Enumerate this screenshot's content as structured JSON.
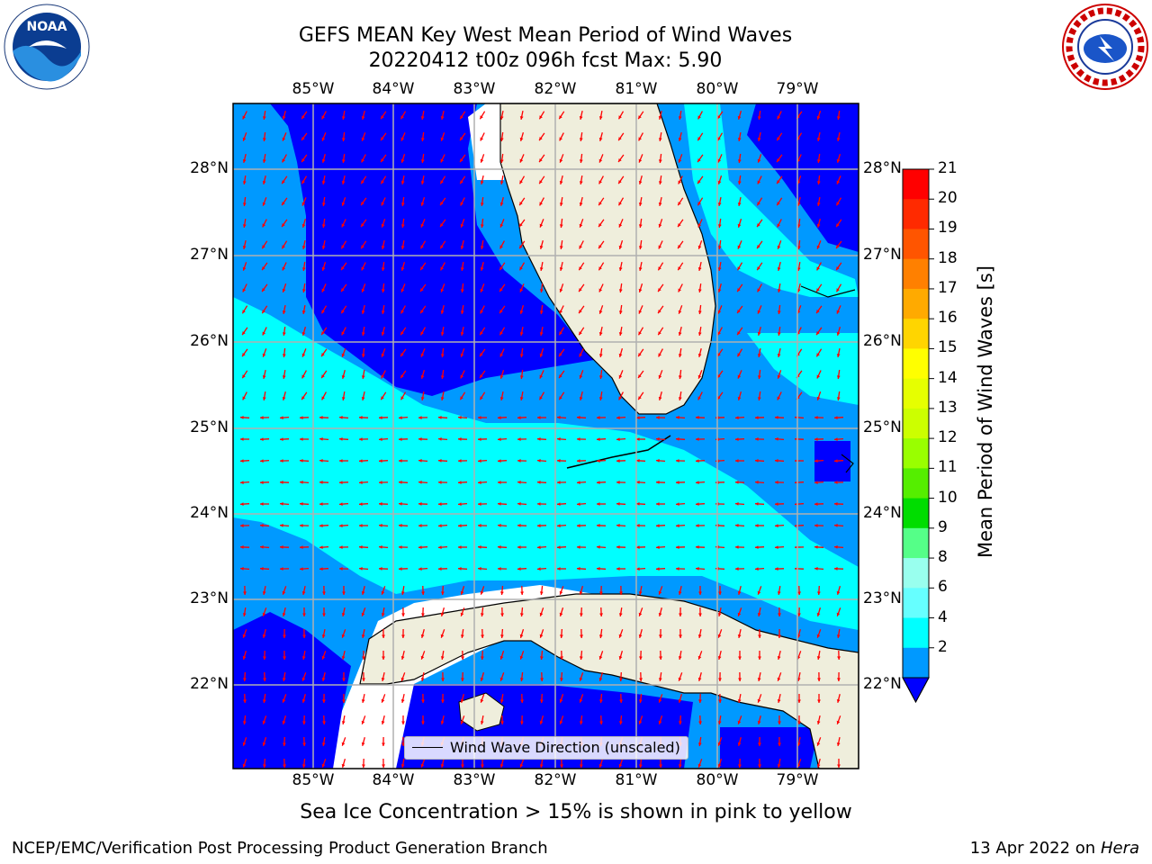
{
  "title": {
    "line1": "GEFS MEAN Key West Mean Period of Wind Waves",
    "line2": "20220412 t00z 096h fcst   Max: 5.90"
  },
  "logos": {
    "left": {
      "icon": "noaa-logo",
      "text": "NOAA"
    },
    "right": {
      "icon": "nws-logo",
      "text": "NATIONAL WEATHER SERVICE"
    }
  },
  "map": {
    "lon_labels": [
      "85°W",
      "84°W",
      "83°W",
      "82°W",
      "81°W",
      "80°W",
      "79°W"
    ],
    "lat_labels": [
      "28°N",
      "27°N",
      "26°N",
      "25°N",
      "24°N",
      "23°N",
      "22°N"
    ],
    "legend_label": "Wind Wave Direction (unscaled)",
    "colors": {
      "land": "#efeedc",
      "period_2_4": "#0000ff",
      "period_4_6": "#0099ff",
      "period_6_8": "#00ffff",
      "arrows": "#ff0000",
      "grid": "#b0b0b0"
    }
  },
  "colorbar": {
    "ticks": [
      "21",
      "20",
      "19",
      "18",
      "17",
      "16",
      "15",
      "14",
      "13",
      "12",
      "11",
      "10",
      "9",
      "8",
      "6",
      "4",
      "2"
    ],
    "label": "Mean Period of Wind Waves [s]",
    "colors": [
      "#ff0000",
      "#ff2a00",
      "#ff5500",
      "#ff8000",
      "#ffaa00",
      "#ffd500",
      "#ffff00",
      "#e6ff00",
      "#ccff00",
      "#99ff00",
      "#55ee00",
      "#00dd00",
      "#55ff88",
      "#99ffee",
      "#66ffff",
      "#00ffff",
      "#0099ff"
    ],
    "extend_color": "#0000ff"
  },
  "note": "Sea Ice Concentration > 15% is shown in pink to yellow",
  "footer": {
    "left": "NCEP/EMC/Verification Post Processing Product Generation Branch",
    "right_date": "13 Apr 2022 on ",
    "right_host": "Hera"
  }
}
